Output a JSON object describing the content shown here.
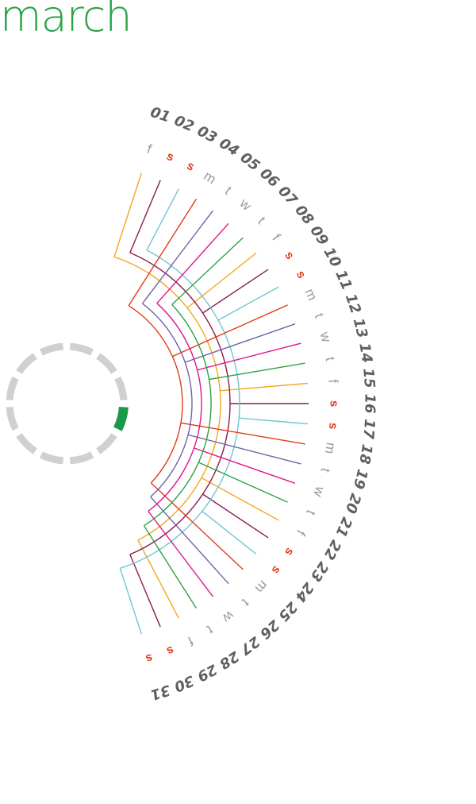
{
  "month": {
    "title": "march"
  },
  "days": [
    {
      "num": "01",
      "wd": "f",
      "weekend": false
    },
    {
      "num": "02",
      "wd": "s",
      "weekend": true
    },
    {
      "num": "03",
      "wd": "s",
      "weekend": true
    },
    {
      "num": "04",
      "wd": "m",
      "weekend": false
    },
    {
      "num": "05",
      "wd": "t",
      "weekend": false
    },
    {
      "num": "06",
      "wd": "w",
      "weekend": false
    },
    {
      "num": "07",
      "wd": "t",
      "weekend": false
    },
    {
      "num": "08",
      "wd": "f",
      "weekend": false
    },
    {
      "num": "09",
      "wd": "s",
      "weekend": true
    },
    {
      "num": "10",
      "wd": "s",
      "weekend": true
    },
    {
      "num": "11",
      "wd": "m",
      "weekend": false
    },
    {
      "num": "12",
      "wd": "t",
      "weekend": false
    },
    {
      "num": "13",
      "wd": "w",
      "weekend": false
    },
    {
      "num": "14",
      "wd": "t",
      "weekend": false
    },
    {
      "num": "15",
      "wd": "f",
      "weekend": false
    },
    {
      "num": "16",
      "wd": "s",
      "weekend": true
    },
    {
      "num": "17",
      "wd": "s",
      "weekend": true
    },
    {
      "num": "18",
      "wd": "m",
      "weekend": false
    },
    {
      "num": "19",
      "wd": "t",
      "weekend": false
    },
    {
      "num": "20",
      "wd": "w",
      "weekend": false
    },
    {
      "num": "21",
      "wd": "t",
      "weekend": false
    },
    {
      "num": "22",
      "wd": "f",
      "weekend": false
    },
    {
      "num": "23",
      "wd": "s",
      "weekend": true
    },
    {
      "num": "24",
      "wd": "s",
      "weekend": true
    },
    {
      "num": "25",
      "wd": "m",
      "weekend": false
    },
    {
      "num": "26",
      "wd": "t",
      "weekend": false
    },
    {
      "num": "27",
      "wd": "w",
      "weekend": false
    },
    {
      "num": "28",
      "wd": "t",
      "weekend": false
    },
    {
      "num": "29",
      "wd": "f",
      "weekend": false
    },
    {
      "num": "30",
      "wd": "s",
      "weekend": true
    },
    {
      "num": "31",
      "wd": "s",
      "weekend": true
    }
  ],
  "weekday_colors": {
    "m": "#e5391a",
    "t1": "#6f64a8",
    "w": "#e0168a",
    "t2": "#2aa345",
    "f": "#f3a81f",
    "s1": "#8b1b4e",
    "s2": "#6ec6d4"
  },
  "colors": {
    "accent": "#1a9a48",
    "weekend_label": "#e5391a",
    "weekday_label": "#9a9a9a",
    "day_number": "#5f5f5f",
    "ring": "#d0d0d0"
  },
  "progress_dial": {
    "segments": 12,
    "highlighted_segment": 3
  }
}
